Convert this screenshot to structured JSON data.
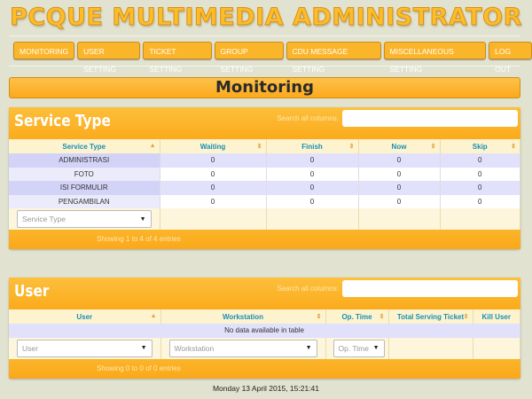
{
  "title": "PCQUE MULTIMEDIA ADMINISTRATOR",
  "nav": [
    "MONITORING",
    "USER SETTING",
    "TICKET SETTING",
    "GROUP SETTING",
    "CDU MESSAGE SETTING",
    "MISCELLANEOUS SETTING",
    "LOG OUT"
  ],
  "page_title": "Monitoring",
  "service": {
    "title": "Service Type",
    "search_label": "Search all columns:",
    "search_value": "",
    "columns": [
      "Service Type",
      "Waiting",
      "Finish",
      "Now",
      "Skip"
    ],
    "rows": [
      [
        "ADMINISTRASI",
        "0",
        "0",
        "0",
        "0"
      ],
      [
        "FOTO",
        "0",
        "0",
        "0",
        "0"
      ],
      [
        "ISI FORMULIR",
        "0",
        "0",
        "0",
        "0"
      ],
      [
        "PENGAMBILAN",
        "0",
        "0",
        "0",
        "0"
      ]
    ],
    "filter_placeholder": "Service Type",
    "info": "Showing 1 to 4 of 4 entries"
  },
  "user": {
    "title": "User",
    "search_label": "Search all columns:",
    "search_value": "",
    "columns": [
      "User",
      "Workstation",
      "Op. Time",
      "Total Serving Ticket",
      "Kill User"
    ],
    "empty": "No data available in table",
    "filters": [
      "User",
      "Workstation",
      "Op. Time"
    ],
    "info": "Showing 0 to 0 of 0 entries"
  },
  "datetime": "Monday 13 April 2015, 15:21:41",
  "colors": {
    "accent": "#fbac1e",
    "background": "#e1e3d0",
    "header_text": "#1a8fb5"
  }
}
